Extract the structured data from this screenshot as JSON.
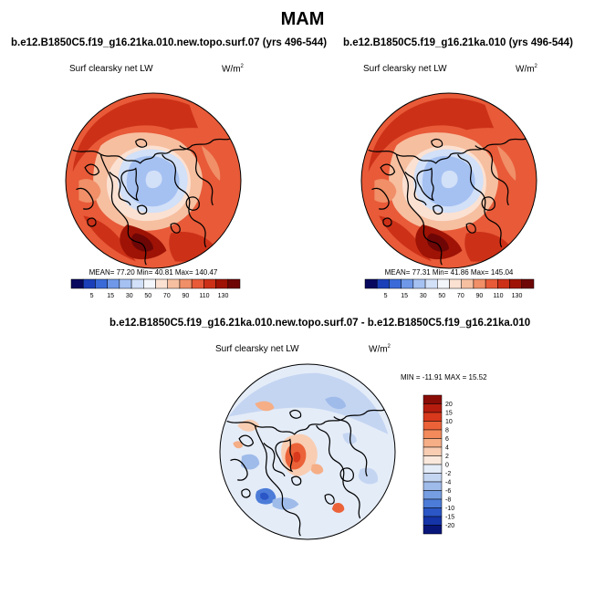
{
  "title": "MAM",
  "panels": [
    {
      "run_title": "b.e12.B1850C5.f19_g16.21ka.010.new.topo.surf.07 (yrs 496-544)",
      "variable": "Surf clearsky net LW",
      "units_base": "W/m",
      "units_exp": "2",
      "stats": "MEAN= 77.20  Min= 40.81  Max= 140.47"
    },
    {
      "run_title": "b.e12.B1850C5.f19_g16.21ka.010 (yrs 496-544)",
      "variable": "Surf clearsky net LW",
      "units_base": "W/m",
      "units_exp": "2",
      "stats": "MEAN= 77.31  Min= 41.86  Max= 145.04"
    },
    {
      "run_title": "b.e12.B1850C5.f19_g16.21ka.010.new.topo.surf.07 - b.e12.B1850C5.f19_g16.21ka.010",
      "variable": "Surf clearsky net LW",
      "units_base": "W/m",
      "units_exp": "2",
      "stats": "MIN = -11.91 MAX =  15.52"
    }
  ],
  "chart_data": [
    {
      "type": "heatmap",
      "projection": "north-polar-stereographic",
      "title": "b.e12.B1850C5.f19_g16.21ka.010.new.topo.surf.07 (yrs 496-544)",
      "variable": "Surf clearsky net LW",
      "units": "W/m2",
      "mean": 77.2,
      "min": 40.81,
      "max": 140.47,
      "colorbar_levels": [
        "5",
        "15",
        "30",
        "50",
        "70",
        "90",
        "110",
        "130"
      ],
      "colorbar_colors": [
        "#08085e",
        "#1a3fb8",
        "#3a6ad8",
        "#6f98e8",
        "#a5c1f2",
        "#d2e0f8",
        "#f3f6fb",
        "#fbe1d2",
        "#f6bfa0",
        "#f08f68",
        "#e85a38",
        "#cc3118",
        "#9e1305",
        "#6e0606"
      ]
    },
    {
      "type": "heatmap",
      "projection": "north-polar-stereographic",
      "title": "b.e12.B1850C5.f19_g16.21ka.010 (yrs 496-544)",
      "variable": "Surf clearsky net LW",
      "units": "W/m2",
      "mean": 77.31,
      "min": 41.86,
      "max": 145.04,
      "colorbar_levels": [
        "5",
        "15",
        "30",
        "50",
        "70",
        "90",
        "110",
        "130"
      ],
      "colorbar_colors": [
        "#08085e",
        "#1a3fb8",
        "#3a6ad8",
        "#6f98e8",
        "#a5c1f2",
        "#d2e0f8",
        "#f3f6fb",
        "#fbe1d2",
        "#f6bfa0",
        "#f08f68",
        "#e85a38",
        "#cc3118",
        "#9e1305",
        "#6e0606"
      ]
    },
    {
      "type": "heatmap",
      "projection": "north-polar-stereographic",
      "title": "b.e12.B1850C5.f19_g16.21ka.010.new.topo.surf.07 - b.e12.B1850C5.f19_g16.21ka.010",
      "variable": "Surf clearsky net LW",
      "units": "W/m2",
      "min": -11.91,
      "max": 15.52,
      "colorbar_levels": [
        "20",
        "15",
        "10",
        "8",
        "6",
        "4",
        "2",
        "0",
        "-2",
        "-4",
        "-6",
        "-8",
        "-10",
        "-15",
        "-20"
      ],
      "colorbar_colors": [
        "#8a0c06",
        "#b51c0e",
        "#d8381c",
        "#ec6238",
        "#f28a5c",
        "#f5ae86",
        "#f8cdb2",
        "#fbe8dc",
        "#e4ecf8",
        "#c4d5f2",
        "#9fbbea",
        "#769ee2",
        "#4c7cd8",
        "#2a56c6",
        "#1434a8",
        "#08167a"
      ]
    }
  ]
}
